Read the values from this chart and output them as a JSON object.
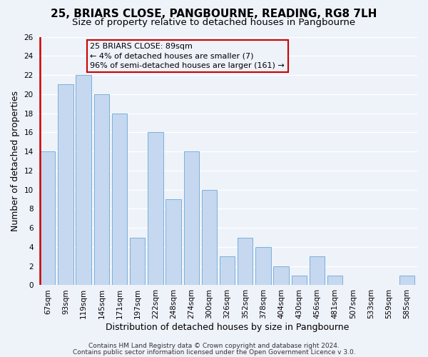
{
  "title": "25, BRIARS CLOSE, PANGBOURNE, READING, RG8 7LH",
  "subtitle": "Size of property relative to detached houses in Pangbourne",
  "xlabel": "Distribution of detached houses by size in Pangbourne",
  "ylabel": "Number of detached properties",
  "bar_labels": [
    "67sqm",
    "93sqm",
    "119sqm",
    "145sqm",
    "171sqm",
    "197sqm",
    "222sqm",
    "248sqm",
    "274sqm",
    "300sqm",
    "326sqm",
    "352sqm",
    "378sqm",
    "404sqm",
    "430sqm",
    "456sqm",
    "481sqm",
    "507sqm",
    "533sqm",
    "559sqm",
    "585sqm"
  ],
  "bar_heights": [
    14,
    21,
    22,
    20,
    18,
    5,
    16,
    9,
    14,
    10,
    3,
    5,
    4,
    2,
    1,
    3,
    1,
    0,
    0,
    0,
    1
  ],
  "bar_color": "#c5d8f0",
  "bar_edge_color": "#7ab0d8",
  "red_line_color": "#cc0000",
  "annotation_title": "25 BRIARS CLOSE: 89sqm",
  "annotation_line1": "← 4% of detached houses are smaller (7)",
  "annotation_line2": "96% of semi-detached houses are larger (161) →",
  "annotation_box_edge": "#cc0000",
  "ylim": [
    0,
    26
  ],
  "yticks": [
    0,
    2,
    4,
    6,
    8,
    10,
    12,
    14,
    16,
    18,
    20,
    22,
    24,
    26
  ],
  "footer1": "Contains HM Land Registry data © Crown copyright and database right 2024.",
  "footer2": "Contains public sector information licensed under the Open Government Licence v 3.0.",
  "background_color": "#eef2f9",
  "grid_color": "#ffffff",
  "title_fontsize": 11,
  "subtitle_fontsize": 9.5,
  "axis_label_fontsize": 9,
  "tick_fontsize": 7.5,
  "footer_fontsize": 6.5,
  "annotation_fontsize": 8
}
